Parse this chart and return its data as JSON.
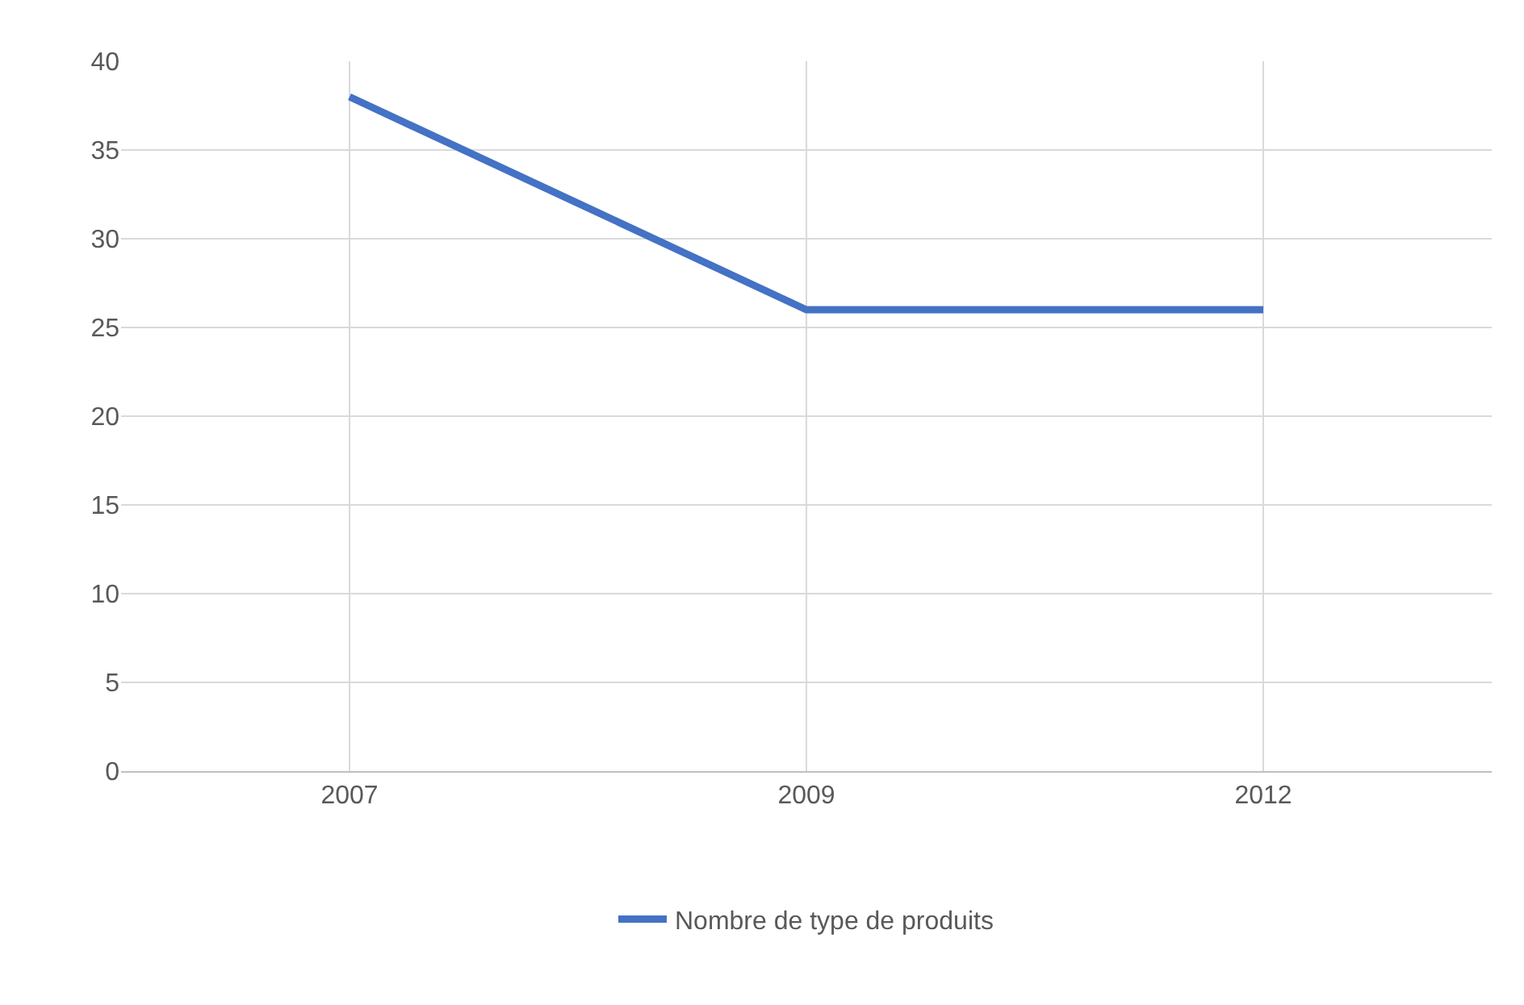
{
  "chart_data": {
    "type": "line",
    "categories": [
      "2007",
      "2009",
      "2012"
    ],
    "series": [
      {
        "name": "Nombre de type de produits",
        "color": "#4472c4",
        "values": [
          38,
          26,
          26
        ]
      }
    ],
    "ylim": [
      0,
      40
    ],
    "yticks": [
      0,
      5,
      10,
      15,
      20,
      25,
      30,
      35,
      40
    ],
    "grid": true,
    "legend": "bottom",
    "marker": "none",
    "line_style": "solid"
  }
}
